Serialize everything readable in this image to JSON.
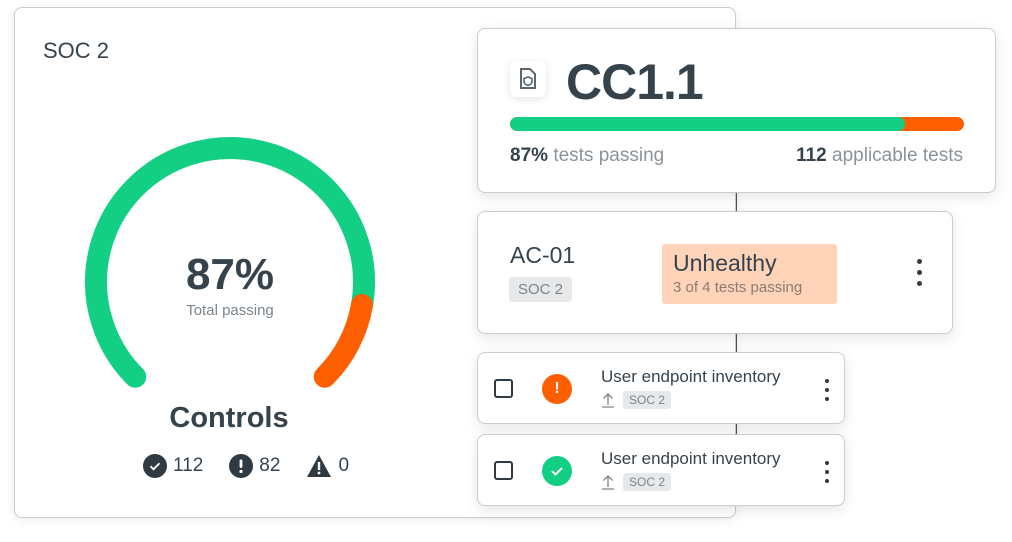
{
  "framework": {
    "title": "SOC 2",
    "gauge_percent": 87,
    "percent_label": "87%",
    "percent_caption": "Total passing",
    "section_title": "Controls",
    "counts": [
      {
        "icon": "check-circle-icon",
        "value": "112"
      },
      {
        "icon": "exclamation-circle-icon",
        "value": "82"
      },
      {
        "icon": "warning-triangle-icon",
        "value": "0"
      }
    ]
  },
  "control": {
    "icon": "document-shield-icon",
    "title": "CC1.1",
    "progress_percent": 87,
    "passing_value": "87%",
    "passing_label": "tests passing",
    "applicable_value": "112",
    "applicable_label": "applicable tests"
  },
  "subcontrol": {
    "title": "AC-01",
    "tag": "SOC 2",
    "status": "Unhealthy",
    "status_detail": "3 of 4 tests passing"
  },
  "tests": [
    {
      "title": "User endpoint inventory",
      "tag": "SOC 2",
      "status": "failing",
      "status_icon": "exclamation-circle-icon"
    },
    {
      "title": "User endpoint inventory",
      "tag": "SOC 2",
      "status": "passing",
      "status_icon": "check-circle-icon"
    }
  ],
  "colors": {
    "pass": "#12cf84",
    "fail": "#fd5f00",
    "unhealthy_bg": "#ffd3b8",
    "text": "#36434d"
  }
}
